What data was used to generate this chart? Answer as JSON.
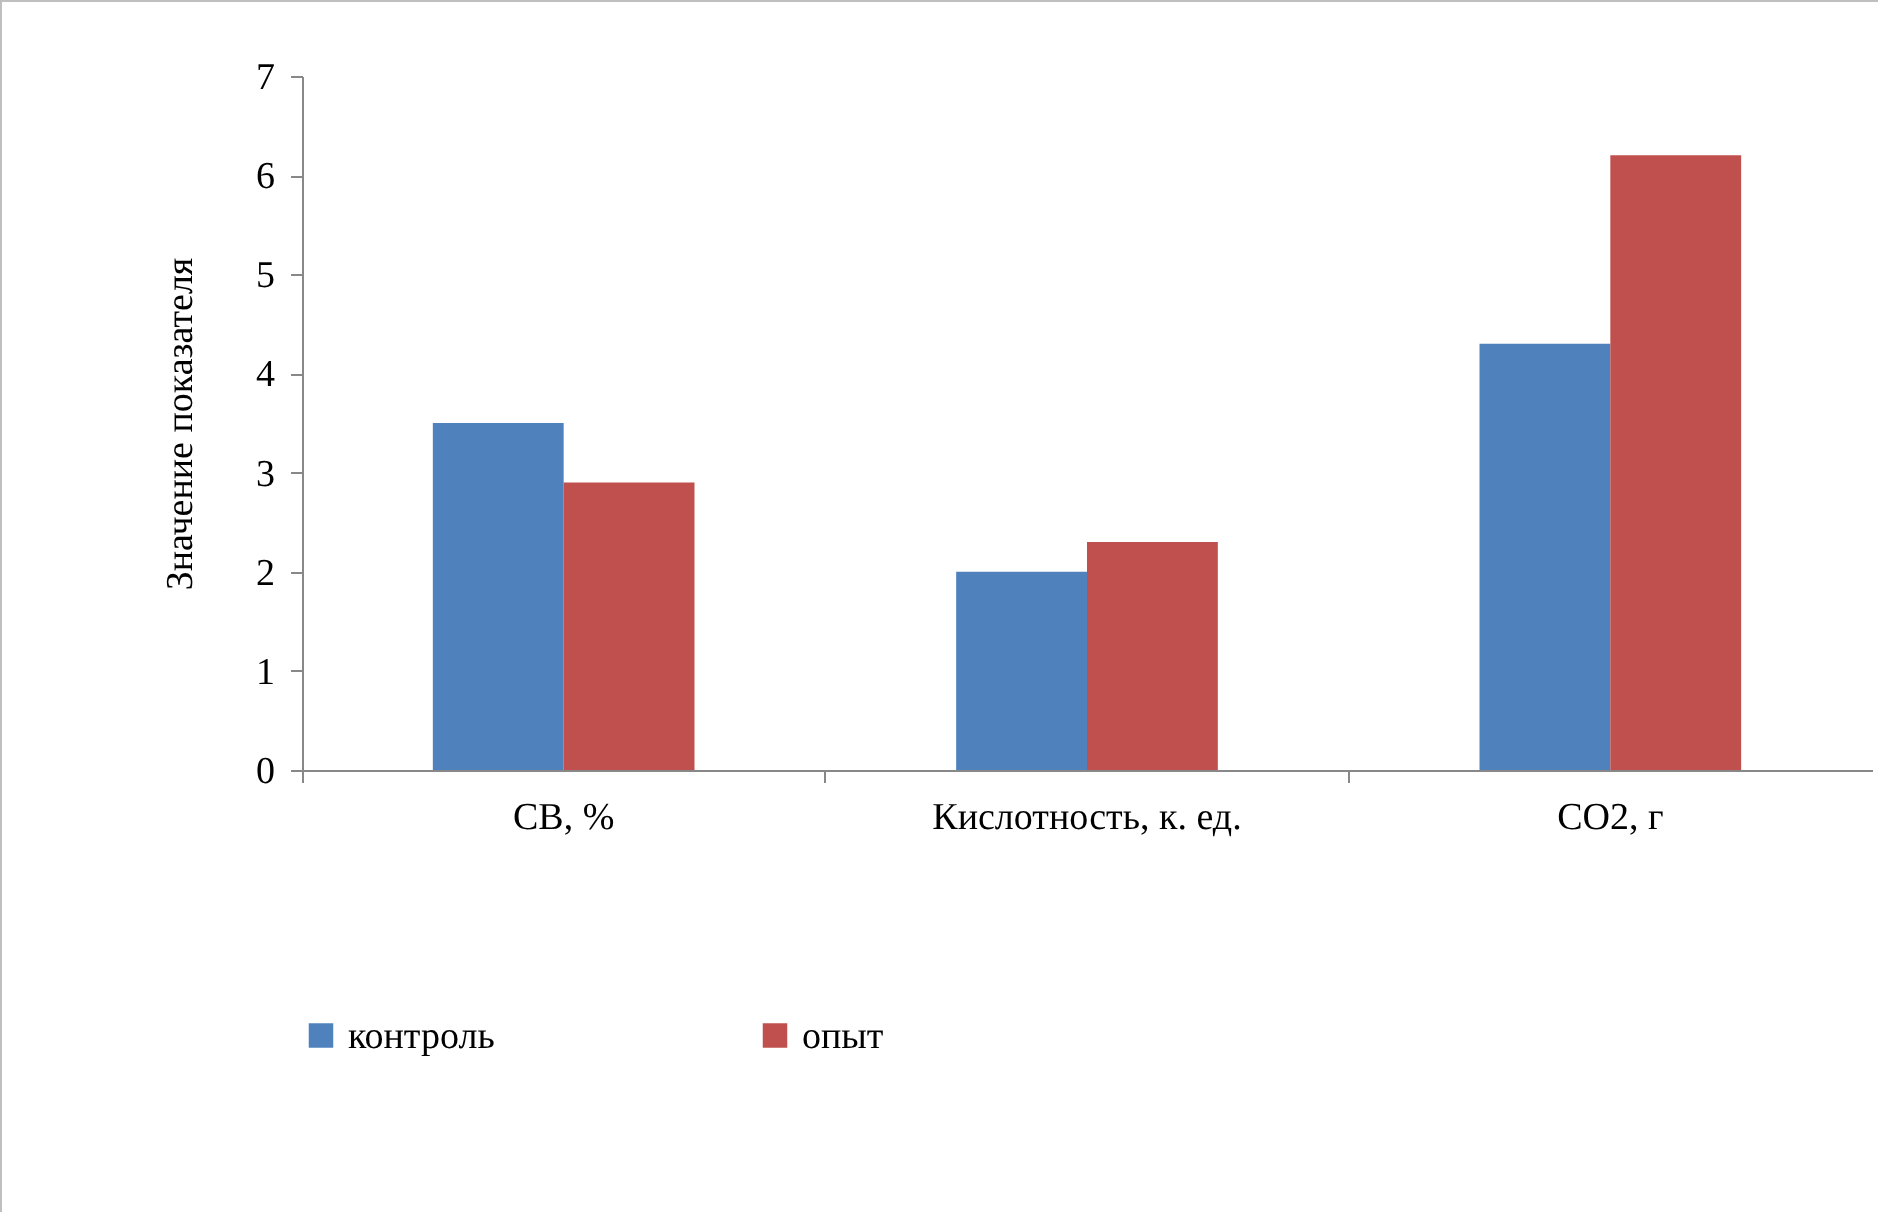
{
  "chart_data": {
    "type": "bar",
    "ylabel": "Значение показателя",
    "categories": [
      "СВ, %",
      "Кислотность, к. ед.",
      "СО2, г"
    ],
    "series": [
      {
        "name": "контроль",
        "color": "#4f81bd",
        "values": [
          3.5,
          2.0,
          4.3
        ]
      },
      {
        "name": "опыт",
        "color": "#c0504d",
        "values": [
          2.9,
          2.3,
          6.2
        ]
      }
    ],
    "ylim": [
      0,
      7
    ],
    "yticks": [
      0,
      1,
      2,
      3,
      4,
      5,
      6,
      7
    ],
    "grid": false,
    "legend": "bottom"
  }
}
